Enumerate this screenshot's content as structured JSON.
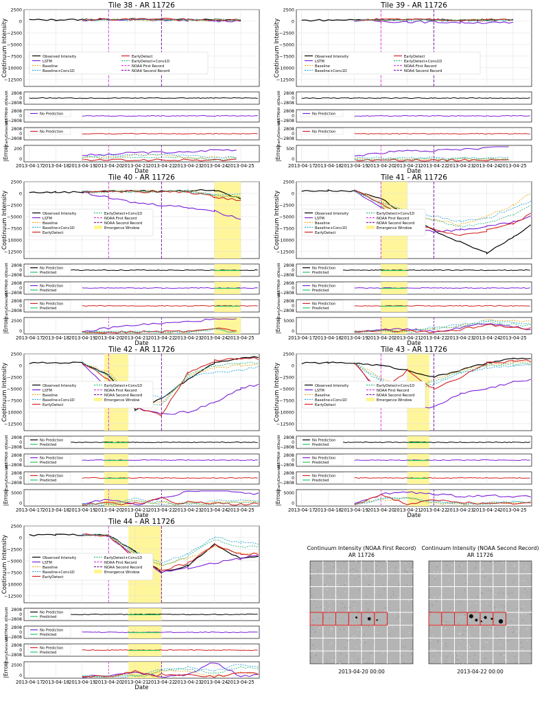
{
  "figure": {
    "xlabel": "Date",
    "ylabel_intensity": "Continuum Intensity",
    "ylabel_dobs": "dObs/dt",
    "ylabel_dlstm": "dLSTM/dt",
    "ylabel_dearly": "dEarlyDetect/dt",
    "ylabel_error": "|Error|",
    "x_ticks": [
      "2013-04-17",
      "2013-04-18",
      "2013-04-19",
      "2013-04-20",
      "2013-04-21",
      "2013-04-22",
      "2013-04-23",
      "2013-04-24",
      "2013-04-25"
    ],
    "deriv_ticks": [
      "2808",
      "0",
      "−2808"
    ],
    "legend_no_prediction": "No Prediction",
    "legend_predicted": "Predicted"
  },
  "chart_data": [
    {
      "type": "line",
      "title": "Tile 38 - AR 11726",
      "ylim": [
        -14000,
        2500
      ],
      "y_ticks": [
        2500,
        0,
        -2500,
        -5000,
        -7500,
        -10000,
        -12500
      ],
      "x": [
        0,
        1,
        2,
        3,
        4,
        5,
        6,
        7,
        8
      ],
      "series": [
        {
          "name": "Observed Intensity",
          "values": [
            300,
            300,
            350,
            400,
            450,
            400,
            350,
            300,
            250
          ]
        },
        {
          "name": "LSTM",
          "values": [
            null,
            null,
            250,
            300,
            300,
            250,
            200,
            100,
            50
          ]
        },
        {
          "name": "Baseline",
          "values": [
            null,
            null,
            300,
            350,
            350,
            300,
            300,
            250,
            200
          ]
        },
        {
          "name": "Baseline+Conv1D",
          "values": [
            null,
            null,
            300,
            300,
            350,
            300,
            250,
            250,
            200
          ]
        },
        {
          "name": "EarlyDetect",
          "values": [
            null,
            null,
            350,
            400,
            450,
            400,
            350,
            300,
            250
          ]
        },
        {
          "name": "EarlyDetect+Conv1D",
          "values": [
            null,
            null,
            300,
            350,
            400,
            350,
            300,
            300,
            200
          ]
        }
      ],
      "noaa_first": "2013-04-20",
      "noaa_second": "2013-04-22",
      "legend": [
        "Observed Intensity",
        "LSTM",
        "Baseline",
        "Baseline+Conv1D",
        "EarlyDetect",
        "EarlyDetect+Conv1D",
        "NOAA First Record",
        "NOAA Second Record"
      ],
      "error_ticks": [
        "200",
        "0"
      ],
      "error_max": 280
    },
    {
      "type": "line",
      "title": "Tile 39 - AR 11726",
      "ylim": [
        -14000,
        2500
      ],
      "y_ticks": [
        2500,
        0,
        -2500,
        -5000,
        -7500,
        -10000,
        -12500
      ],
      "x": [
        0,
        1,
        2,
        3,
        4,
        5,
        6,
        7,
        8
      ],
      "series": [
        {
          "name": "Observed Intensity",
          "values": [
            200,
            250,
            300,
            350,
            350,
            300,
            250,
            300,
            350
          ]
        },
        {
          "name": "LSTM",
          "values": [
            null,
            null,
            100,
            0,
            -100,
            -150,
            -250,
            -300,
            -400
          ]
        },
        {
          "name": "Baseline",
          "values": [
            null,
            null,
            250,
            300,
            300,
            250,
            200,
            250,
            300
          ]
        },
        {
          "name": "Baseline+Conv1D",
          "values": [
            null,
            null,
            200,
            250,
            250,
            200,
            150,
            200,
            250
          ]
        },
        {
          "name": "EarlyDetect",
          "values": [
            null,
            null,
            300,
            350,
            350,
            300,
            250,
            300,
            350
          ]
        },
        {
          "name": "EarlyDetect+Conv1D",
          "values": [
            null,
            null,
            250,
            300,
            300,
            250,
            200,
            250,
            300
          ]
        }
      ],
      "noaa_first": "2013-04-20",
      "noaa_second": "2013-04-22",
      "legend": [
        "Observed Intensity",
        "LSTM",
        "Baseline",
        "Baseline+Conv1D",
        "EarlyDetect",
        "EarlyDetect+Conv1D",
        "NOAA First Record",
        "NOAA Second Record"
      ],
      "error_ticks": [
        "500",
        "0"
      ],
      "error_max": 700
    },
    {
      "type": "line",
      "title": "Tile 40 - AR 11726",
      "ylim": [
        -14000,
        2500
      ],
      "y_ticks": [
        2500,
        0,
        -2500,
        -5000,
        -7500,
        -10000,
        -12500
      ],
      "x": [
        0,
        1,
        2,
        3,
        4,
        5,
        6,
        7,
        8
      ],
      "series": [
        {
          "name": "Observed Intensity",
          "values": [
            200,
            250,
            300,
            500,
            500,
            500,
            600,
            700,
            -1200
          ]
        },
        {
          "name": "LSTM",
          "values": [
            null,
            null,
            300,
            -1000,
            -2000,
            -2500,
            -3000,
            -3800,
            -5500
          ]
        },
        {
          "name": "Baseline",
          "values": [
            null,
            null,
            300,
            500,
            500,
            500,
            600,
            -500,
            -700
          ]
        },
        {
          "name": "Baseline+Conv1D",
          "values": [
            null,
            null,
            300,
            400,
            400,
            400,
            500,
            -300,
            -400
          ]
        },
        {
          "name": "EarlyDetect",
          "values": [
            null,
            null,
            300,
            500,
            400,
            300,
            300,
            -700,
            -1500
          ]
        },
        {
          "name": "EarlyDetect+Conv1D",
          "values": [
            null,
            null,
            300,
            400,
            400,
            300,
            400,
            -400,
            -800
          ]
        }
      ],
      "noaa_first": "2013-04-20",
      "noaa_second": "2013-04-22",
      "emergence_window": [
        "2013-04-24",
        "2013-04-25"
      ],
      "legend": [
        "Observed Intensity",
        "LSTM",
        "Baseline",
        "Baseline+Conv1D",
        "EarlyDetect",
        "EarlyDetect+Conv1D",
        "NOAA First Record",
        "NOAA Second Record",
        "Emergence Window"
      ],
      "error_ticks": [
        "2500",
        "0"
      ],
      "error_max": 5000
    },
    {
      "type": "line",
      "title": "Tile 41 - AR 11726",
      "ylim": [
        -14000,
        2500
      ],
      "y_ticks": [
        2500,
        0,
        -2500,
        -5000,
        -7500,
        -10000,
        -12500
      ],
      "x": [
        0,
        1,
        2,
        3,
        4,
        5,
        6,
        7,
        8,
        9
      ],
      "series": [
        {
          "name": "Observed Intensity",
          "values": [
            500,
            600,
            500,
            -1000,
            -5000,
            -8000,
            -10500,
            -12800,
            -9500,
            -5500
          ]
        },
        {
          "name": "LSTM",
          "values": [
            null,
            null,
            500,
            -3000,
            -7000,
            -8200,
            -7800,
            -7200,
            -6200,
            -4500
          ]
        },
        {
          "name": "Baseline",
          "values": [
            null,
            null,
            500,
            -1500,
            -4500,
            -5500,
            -6800,
            -5000,
            -2500,
            1200
          ]
        },
        {
          "name": "Baseline+Conv1D",
          "values": [
            null,
            null,
            500,
            -2000,
            -4000,
            -4800,
            -6000,
            -5500,
            -3000,
            -1000
          ]
        },
        {
          "name": "EarlyDetect",
          "values": [
            null,
            null,
            500,
            -2000,
            -6000,
            -7800,
            -9000,
            -8000,
            -6500,
            -3500
          ]
        },
        {
          "name": "EarlyDetect+Conv1D",
          "values": [
            null,
            null,
            500,
            -2500,
            -5000,
            -5800,
            -7000,
            -6500,
            -4500,
            -2000
          ]
        }
      ],
      "noaa_first": "2013-04-20",
      "noaa_second": "2013-04-22",
      "emergence_window": [
        "2013-04-20",
        "2013-04-21"
      ],
      "legend": [
        "Observed Intensity",
        "LSTM",
        "Baseline",
        "Baseline+Conv1D",
        "EarlyDetect",
        "EarlyDetect+Conv1D",
        "NOAA First Record",
        "NOAA Second Record",
        "Emergence Window"
      ],
      "error_ticks": [
        "5000",
        "0"
      ],
      "error_max": 9000
    },
    {
      "type": "line",
      "title": "Tile 42 - AR 11726",
      "ylim": [
        -14000,
        2500
      ],
      "y_ticks": [
        2500,
        0,
        -2500,
        -5000,
        -7500,
        -10000,
        -12500
      ],
      "x": [
        0,
        1,
        2,
        3,
        4,
        5,
        6,
        7,
        8,
        9
      ],
      "series": [
        {
          "name": "Observed Intensity",
          "values": [
            500,
            600,
            600,
            -2000,
            -9500,
            -7000,
            -3000,
            500,
            1500,
            2000
          ]
        },
        {
          "name": "LSTM",
          "values": [
            null,
            null,
            600,
            -5000,
            -9000,
            -10500,
            -10000,
            -8000,
            -5000,
            -3500
          ]
        },
        {
          "name": "Baseline",
          "values": [
            null,
            null,
            600,
            -1500,
            -7000,
            -8000,
            -2000,
            -500,
            0,
            500
          ]
        },
        {
          "name": "Baseline+Conv1D",
          "values": [
            null,
            null,
            600,
            -2000,
            -6000,
            -7000,
            -2500,
            -1500,
            -1000,
            0
          ]
        },
        {
          "name": "EarlyDetect",
          "values": [
            null,
            null,
            600,
            -3000,
            -9000,
            -10800,
            -1500,
            1000,
            1500,
            1500
          ]
        },
        {
          "name": "EarlyDetect+Conv1D",
          "values": [
            null,
            null,
            600,
            -2500,
            -7500,
            -8500,
            -2000,
            0,
            500,
            800
          ]
        }
      ],
      "noaa_first": "2013-04-20",
      "noaa_second": "2013-04-22",
      "emergence_window": [
        "2013-04-19 20:00",
        "2013-04-20 18:00"
      ],
      "legend": [
        "Observed Intensity",
        "LSTM",
        "Baseline",
        "Baseline+Conv1D",
        "EarlyDetect",
        "EarlyDetect+Conv1D",
        "NOAA First Record",
        "NOAA Second Record",
        "Emergence Window"
      ],
      "error_ticks": [
        "5000",
        "0"
      ],
      "error_max": 8000
    },
    {
      "type": "line",
      "title": "Tile 43 - AR 11726",
      "ylim": [
        -14000,
        2500
      ],
      "y_ticks": [
        2500,
        0,
        -2500,
        -5000,
        -7500,
        -10000,
        -12500
      ],
      "x": [
        0,
        1,
        2,
        3,
        4,
        5,
        6,
        7,
        8,
        9
      ],
      "series": [
        {
          "name": "Observed Intensity",
          "values": [
            500,
            600,
            500,
            0,
            -1000,
            -2500,
            -1000,
            500,
            1500,
            1500
          ]
        },
        {
          "name": "LSTM",
          "values": [
            null,
            null,
            500,
            -6500,
            -8500,
            -9000,
            -6000,
            -5000,
            -3500,
            -3000
          ]
        },
        {
          "name": "Baseline",
          "values": [
            null,
            null,
            500,
            -2500,
            -5000,
            -3000,
            -1000,
            0,
            500,
            800
          ]
        },
        {
          "name": "Baseline+Conv1D",
          "values": [
            null,
            null,
            500,
            -3000,
            -5500,
            -4000,
            -1500,
            -500,
            0,
            500
          ]
        },
        {
          "name": "EarlyDetect",
          "values": [
            null,
            null,
            500,
            -6000,
            -1000,
            -5000,
            -2500,
            500,
            1000,
            1000
          ]
        },
        {
          "name": "EarlyDetect+Conv1D",
          "values": [
            null,
            null,
            500,
            -3500,
            -5000,
            -3500,
            -1500,
            0,
            300,
            500
          ]
        }
      ],
      "noaa_first": "2013-04-20",
      "noaa_second": "2013-04-22",
      "emergence_window": [
        "2013-04-21",
        "2013-04-21 20:00"
      ],
      "legend": [
        "Observed Intensity",
        "LSTM",
        "Baseline",
        "Baseline+Conv1D",
        "EarlyDetect",
        "EarlyDetect+Conv1D",
        "NOAA First Record",
        "NOAA Second Record",
        "Emergence Window"
      ],
      "error_ticks": [
        "5000",
        "0"
      ],
      "error_max": 9000
    },
    {
      "type": "line",
      "title": "Tile 44 - AR 11726",
      "ylim": [
        -14000,
        2500
      ],
      "y_ticks": [
        2500,
        0,
        -2500,
        -5000,
        -7500,
        -10000,
        -12500
      ],
      "x": [
        0,
        1,
        2,
        3,
        4,
        5,
        6,
        7,
        8,
        9
      ],
      "series": [
        {
          "name": "Observed Intensity",
          "values": [
            500,
            600,
            600,
            500,
            -3000,
            -7500,
            -6000,
            -1500,
            -4500,
            -4000
          ]
        },
        {
          "name": "LSTM",
          "values": [
            null,
            null,
            600,
            300,
            -4000,
            -7500,
            -6500,
            -5500,
            -4500,
            -3500
          ]
        },
        {
          "name": "Baseline",
          "values": [
            null,
            null,
            600,
            500,
            -3500,
            -6000,
            -4500,
            -2000,
            -3500,
            -3000
          ]
        },
        {
          "name": "Baseline+Conv1D",
          "values": [
            null,
            null,
            600,
            500,
            -3000,
            -5500,
            -3500,
            0,
            -1000,
            -1500
          ]
        },
        {
          "name": "EarlyDetect",
          "values": [
            null,
            null,
            600,
            500,
            -4500,
            -7000,
            -5500,
            -1500,
            -3500,
            -3500
          ]
        },
        {
          "name": "EarlyDetect+Conv1D",
          "values": [
            null,
            null,
            600,
            500,
            -3500,
            -6000,
            -4000,
            -500,
            -2000,
            -2000
          ]
        }
      ],
      "noaa_first": "2013-04-20",
      "noaa_second": "2013-04-22",
      "emergence_window": [
        "2013-04-20 18:00",
        "2013-04-22"
      ],
      "legend": [
        "Observed Intensity",
        "LSTM",
        "Baseline",
        "Baseline+Conv1D",
        "EarlyDetect",
        "EarlyDetect+Conv1D",
        "NOAA First Record",
        "NOAA Second Record",
        "Emergence Window"
      ],
      "error_ticks": [
        "2500",
        "0"
      ],
      "error_max": 4000
    }
  ],
  "images": [
    {
      "title_line1": "Continuum Intensity (NOAA First Record)",
      "title_line2": "AR 11726",
      "caption": "2013-04-20 00:00"
    },
    {
      "title_line1": "Continuum Intensity (NOAA Second Record)",
      "title_line2": "AR 11726",
      "caption": "2013-04-22 00:00"
    }
  ],
  "colors": {
    "observed": "#000000",
    "lstm": "#7a1fd6",
    "baseline": "#f0a818",
    "baseline_conv": "#2aa6d6",
    "earlydetect": "#d42020",
    "earlydetect_conv": "#2bb57a",
    "noaa_first": "#e33de3",
    "noaa_second": "#7a1f9e",
    "window": "#fff58a",
    "predicted": "#1fc46a"
  }
}
